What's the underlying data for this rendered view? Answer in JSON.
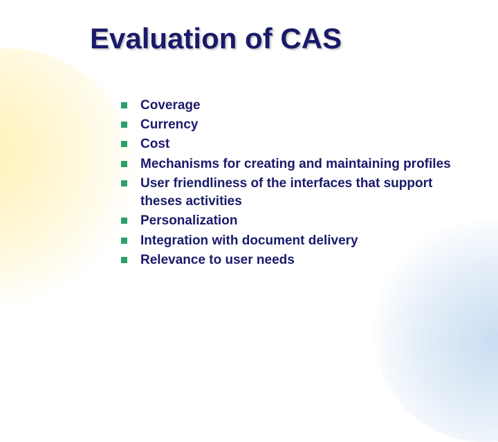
{
  "title": "Evaluation of CAS",
  "title_color": "#1a1a6a",
  "title_fontsize": 42,
  "bullet_color": "#2aa06a",
  "body_color": "#1a1a6a",
  "body_fontsize": 19,
  "background_color": "#ffffff",
  "blob_yellow_color": "rgba(255,230,120,0.55)",
  "blob_blue_color": "rgba(120,170,220,0.40)",
  "items": [
    "Coverage",
    "Currency",
    "Cost",
    "Mechanisms for creating and maintaining profiles",
    "User friendliness of the interfaces that support theses activities",
    "Personalization",
    "Integration with document delivery",
    "Relevance to user needs"
  ]
}
